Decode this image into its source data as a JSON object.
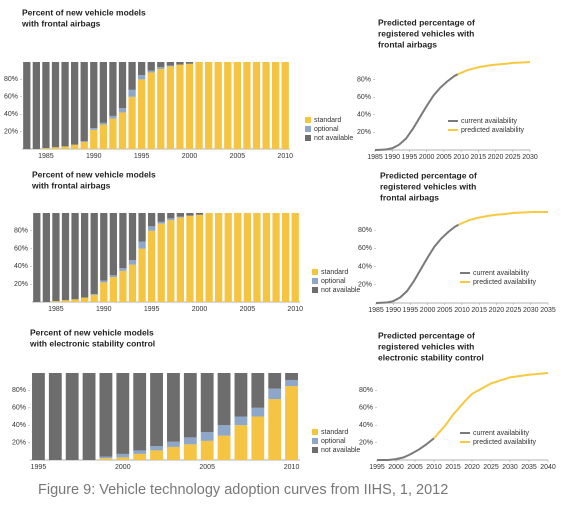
{
  "chart_data": [
    {
      "type": "stacked_bar",
      "title": [
        "Percent of new vehicle models",
        "with frontal airbags"
      ],
      "categories": [
        null,
        null,
        "1985",
        null,
        null,
        null,
        null,
        "1990",
        null,
        null,
        null,
        null,
        "1995",
        null,
        null,
        null,
        null,
        "2000",
        null,
        null,
        null,
        null,
        "2005",
        null,
        null,
        null,
        null,
        "2010"
      ],
      "series": [
        {
          "name": "standard",
          "color": "#f6c443",
          "values": [
            0,
            0,
            1,
            2,
            3,
            5,
            8,
            22,
            28,
            35,
            42,
            60,
            80,
            88,
            92,
            95,
            97,
            98,
            100,
            100,
            100,
            100,
            100,
            100,
            100,
            100,
            100,
            100
          ]
        },
        {
          "name": "optional",
          "color": "#8ea7c9",
          "values": [
            0,
            0,
            0,
            0,
            0,
            0,
            1,
            2,
            2,
            3,
            5,
            8,
            5,
            2,
            2,
            1,
            0,
            0,
            0,
            0,
            0,
            0,
            0,
            0,
            0,
            0,
            0,
            0
          ]
        },
        {
          "name": "not available",
          "color": "#6d6d6d",
          "values": [
            100,
            100,
            99,
            98,
            97,
            95,
            91,
            76,
            70,
            62,
            53,
            32,
            15,
            10,
            6,
            4,
            3,
            2,
            0,
            0,
            0,
            0,
            0,
            0,
            0,
            0,
            0,
            0
          ]
        }
      ],
      "ylim": [
        0,
        100
      ],
      "yticks": [
        {
          "value": 20,
          "label": "20%"
        },
        {
          "value": 40,
          "label": "40%"
        },
        {
          "value": 60,
          "label": "60%"
        },
        {
          "value": 80,
          "label": "80%"
        }
      ]
    },
    {
      "type": "line",
      "title": [
        "Predicted percentage of",
        "registered vehicles with",
        "frontal airbags"
      ],
      "series": [
        {
          "name": "current availability",
          "color": "#7a7a7a",
          "x": [
            1985,
            1988,
            1990,
            1992,
            1994,
            1996,
            1998,
            2000,
            2002,
            2004,
            2006,
            2008,
            2009
          ],
          "values": [
            0,
            0.5,
            2,
            6,
            13,
            24,
            37,
            50,
            62,
            71,
            78,
            84,
            86
          ]
        },
        {
          "name": "predicted availability",
          "color": "#f7c940",
          "x": [
            2009,
            2012,
            2015,
            2018,
            2020,
            2023,
            2025,
            2028,
            2030
          ],
          "values": [
            86,
            91,
            94,
            96,
            97,
            98,
            99,
            99.5,
            100
          ]
        }
      ],
      "xlim": [
        1985,
        2030
      ],
      "xticks": [
        1985,
        1990,
        1995,
        2000,
        2005,
        2010,
        2015,
        2020,
        2025,
        2030
      ],
      "ylim": [
        0,
        100
      ],
      "yticks": [
        {
          "value": 20,
          "label": "20%"
        },
        {
          "value": 40,
          "label": "40%"
        },
        {
          "value": 60,
          "label": "60%"
        },
        {
          "value": 80,
          "label": "80%"
        }
      ]
    },
    {
      "type": "stacked_bar",
      "title": [
        "Percent of new vehicle models",
        "with frontal airbags"
      ],
      "categories": [
        null,
        null,
        "1985",
        null,
        null,
        null,
        null,
        "1990",
        null,
        null,
        null,
        null,
        "1995",
        null,
        null,
        null,
        null,
        "2000",
        null,
        null,
        null,
        null,
        "2005",
        null,
        null,
        null,
        null,
        "2010"
      ],
      "series": [
        {
          "name": "standard",
          "color": "#f6c443",
          "values": [
            0,
            0,
            1,
            2,
            3,
            5,
            8,
            22,
            28,
            35,
            42,
            60,
            80,
            88,
            92,
            95,
            97,
            98,
            100,
            100,
            100,
            100,
            100,
            100,
            100,
            100,
            100,
            100
          ]
        },
        {
          "name": "optional",
          "color": "#8ea7c9",
          "values": [
            0,
            0,
            0,
            0,
            0,
            0,
            1,
            2,
            2,
            3,
            5,
            8,
            5,
            2,
            2,
            1,
            0,
            0,
            0,
            0,
            0,
            0,
            0,
            0,
            0,
            0,
            0,
            0
          ]
        },
        {
          "name": "not available",
          "color": "#6d6d6d",
          "values": [
            100,
            100,
            99,
            98,
            97,
            95,
            91,
            76,
            70,
            62,
            53,
            32,
            15,
            10,
            6,
            4,
            3,
            2,
            0,
            0,
            0,
            0,
            0,
            0,
            0,
            0,
            0,
            0
          ]
        }
      ],
      "ylim": [
        0,
        100
      ],
      "yticks": [
        {
          "value": 20,
          "label": "20%"
        },
        {
          "value": 40,
          "label": "40%"
        },
        {
          "value": 60,
          "label": "60%"
        },
        {
          "value": 80,
          "label": "80%"
        }
      ]
    },
    {
      "type": "line",
      "title": [
        "Predicted percentage of",
        "registered vehicles with",
        "frontal airbags"
      ],
      "series": [
        {
          "name": "current availability",
          "color": "#7a7a7a",
          "x": [
            1985,
            1988,
            1990,
            1992,
            1994,
            1996,
            1998,
            2000,
            2002,
            2004,
            2006,
            2008,
            2009
          ],
          "values": [
            0,
            0.5,
            2,
            6,
            13,
            24,
            37,
            50,
            62,
            71,
            78,
            84,
            86
          ]
        },
        {
          "name": "predicted availability",
          "color": "#f7c940",
          "x": [
            2009,
            2012,
            2015,
            2018,
            2020,
            2023,
            2025,
            2028,
            2030,
            2035
          ],
          "values": [
            86,
            91,
            94,
            96,
            97,
            98,
            99,
            99.5,
            100,
            100
          ]
        }
      ],
      "xlim": [
        1985,
        2035
      ],
      "xticks": [
        1985,
        1990,
        1995,
        2000,
        2005,
        2010,
        2015,
        2020,
        2025,
        2030,
        2035
      ],
      "ylim": [
        0,
        100
      ],
      "yticks": [
        {
          "value": 20,
          "label": "20%"
        },
        {
          "value": 40,
          "label": "40%"
        },
        {
          "value": 60,
          "label": "60%"
        },
        {
          "value": 80,
          "label": "80%"
        }
      ]
    },
    {
      "type": "stacked_bar",
      "title": [
        "Percent of new vehicle models",
        "with electronic stability control"
      ],
      "categories": [
        "1995",
        null,
        null,
        null,
        null,
        "2000",
        null,
        null,
        null,
        null,
        "2005",
        null,
        null,
        null,
        null,
        "2010"
      ],
      "series": [
        {
          "name": "standard",
          "color": "#f6c443",
          "values": [
            0,
            0,
            0,
            0,
            2,
            3,
            7,
            11,
            15,
            18,
            22,
            28,
            40,
            50,
            70,
            85
          ]
        },
        {
          "name": "optional",
          "color": "#8ea7c9",
          "values": [
            0,
            0,
            0,
            0,
            2,
            4,
            4,
            5,
            6,
            8,
            10,
            12,
            10,
            10,
            12,
            7
          ]
        },
        {
          "name": "not available",
          "color": "#6d6d6d",
          "values": [
            100,
            100,
            100,
            100,
            96,
            93,
            89,
            84,
            79,
            74,
            68,
            60,
            50,
            40,
            18,
            8
          ]
        }
      ],
      "ylim": [
        0,
        100
      ],
      "yticks": [
        {
          "value": 20,
          "label": "20%"
        },
        {
          "value": 40,
          "label": "40%"
        },
        {
          "value": 60,
          "label": "60%"
        },
        {
          "value": 80,
          "label": "80%"
        }
      ]
    },
    {
      "type": "line",
      "title": [
        "Predicted percentage of",
        "registered vehicles with",
        "electronic stability control"
      ],
      "series": [
        {
          "name": "current availability",
          "color": "#7a7a7a",
          "x": [
            1995,
            1998,
            2000,
            2002,
            2004,
            2006,
            2008,
            2010
          ],
          "values": [
            0,
            0,
            1,
            3,
            7,
            12,
            18,
            25
          ]
        },
        {
          "name": "predicted availability",
          "color": "#f7c940",
          "x": [
            2010,
            2013,
            2015,
            2018,
            2020,
            2025,
            2030,
            2035,
            2040
          ],
          "values": [
            25,
            40,
            52,
            67,
            76,
            88,
            95,
            98,
            100
          ]
        }
      ],
      "xlim": [
        1995,
        2040
      ],
      "xticks": [
        1995,
        2000,
        2005,
        2010,
        2015,
        2020,
        2025,
        2030,
        2035,
        2040
      ],
      "ylim": [
        0,
        100
      ],
      "yticks": [
        {
          "value": 20,
          "label": "20%"
        },
        {
          "value": 40,
          "label": "40%"
        },
        {
          "value": 60,
          "label": "60%"
        },
        {
          "value": 80,
          "label": "80%"
        }
      ]
    }
  ],
  "caption": "Figure 9: Vehicle technology adoption curves from IIHS, 1, 2012"
}
